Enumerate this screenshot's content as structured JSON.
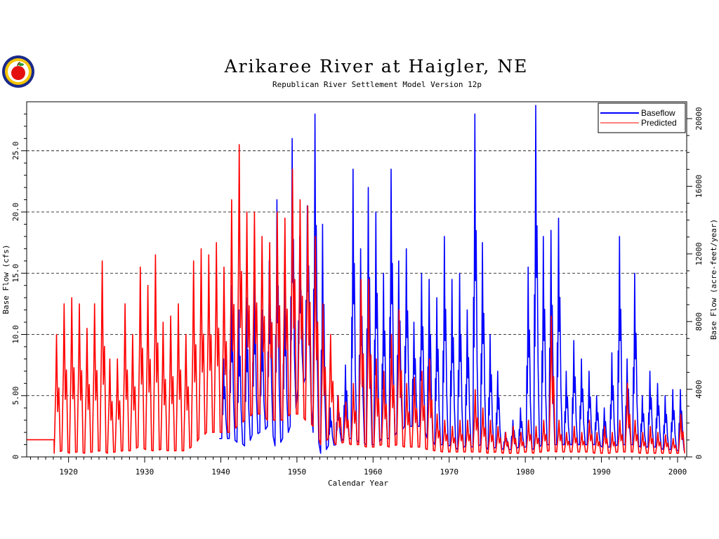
{
  "chart_data": {
    "type": "line",
    "title": "Arikaree River at Haigler, NE",
    "subtitle": "Republican River Settlement Model Version 12p",
    "xlabel": "Calendar Year",
    "ylabel": "Base Flow (cfs)",
    "y2label": "Base Flow (acre-feet/year)",
    "xlim": [
      1914.5,
      2001.2
    ],
    "ylim": [
      0,
      29
    ],
    "x_ticks": [
      1920,
      1930,
      1940,
      1950,
      1960,
      1970,
      1980,
      1990,
      2000
    ],
    "x_tick_labels": [
      "1920",
      "1930",
      "1940",
      "1950",
      "1960",
      "1970",
      "1980",
      "1990",
      "2000"
    ],
    "y_ticks": [
      0,
      5,
      10,
      15,
      20,
      25
    ],
    "y_tick_labels": [
      "0",
      "5.00",
      "10.0",
      "15.0",
      "20.0",
      "25.0"
    ],
    "y2_ticks": [
      0,
      4000,
      8000,
      12000,
      16000,
      20000
    ],
    "y2_tick_labels": [
      "0",
      "4000",
      "8000",
      "12000",
      "16000",
      "20000"
    ],
    "y2_per_y": 724,
    "grid": "horizontal-dashed",
    "legend_position": "top-right",
    "series": [
      {
        "name": "Baseflow",
        "color": "#0000ff",
        "start": 1939.8,
        "annual_peaks": [
          [
            1940,
            8.0
          ],
          [
            1941,
            14.0
          ],
          [
            1942,
            12.0
          ],
          [
            1943,
            13.0
          ],
          [
            1944,
            15.0
          ],
          [
            1945,
            12.0
          ],
          [
            1946,
            16.0
          ],
          [
            1947,
            21.0
          ],
          [
            1948,
            15.0
          ],
          [
            1949,
            26.0
          ],
          [
            1950,
            18.0
          ],
          [
            1951,
            20.5
          ],
          [
            1952,
            28.0
          ],
          [
            1953,
            19.0
          ],
          [
            1954,
            4.0
          ],
          [
            1955,
            5.0
          ],
          [
            1956,
            7.5
          ],
          [
            1957,
            23.5
          ],
          [
            1958,
            17.0
          ],
          [
            1959,
            22.0
          ],
          [
            1960,
            20.0
          ],
          [
            1961,
            15.0
          ],
          [
            1962,
            23.5
          ],
          [
            1963,
            16.0
          ],
          [
            1964,
            17.0
          ],
          [
            1965,
            11.0
          ],
          [
            1966,
            15.0
          ],
          [
            1967,
            14.5
          ],
          [
            1968,
            13.0
          ],
          [
            1969,
            18.0
          ],
          [
            1970,
            14.5
          ],
          [
            1971,
            15.0
          ],
          [
            1972,
            12.0
          ],
          [
            1973,
            28.0
          ],
          [
            1974,
            17.5
          ],
          [
            1975,
            10.0
          ],
          [
            1976,
            7.0
          ],
          [
            1977,
            2.0
          ],
          [
            1978,
            3.0
          ],
          [
            1979,
            4.0
          ],
          [
            1980,
            15.5
          ],
          [
            1981,
            28.7
          ],
          [
            1982,
            18.0
          ],
          [
            1983,
            18.5
          ],
          [
            1984,
            19.5
          ],
          [
            1985,
            7.0
          ],
          [
            1986,
            9.5
          ],
          [
            1987,
            8.0
          ],
          [
            1988,
            7.0
          ],
          [
            1989,
            5.0
          ],
          [
            1990,
            4.0
          ],
          [
            1991,
            8.5
          ],
          [
            1992,
            18.0
          ],
          [
            1993,
            8.0
          ],
          [
            1994,
            15.0
          ],
          [
            1995,
            5.0
          ],
          [
            1996,
            7.0
          ],
          [
            1997,
            6.0
          ],
          [
            1998,
            5.0
          ],
          [
            1999,
            5.5
          ],
          [
            2000,
            5.5
          ]
        ],
        "annual_lows": [
          [
            1940,
            1.5
          ],
          [
            1941,
            1.5
          ],
          [
            1942,
            1.2
          ],
          [
            1943,
            0.9
          ],
          [
            1944,
            1.8
          ],
          [
            1945,
            2.0
          ],
          [
            1946,
            2.5
          ],
          [
            1947,
            0.9
          ],
          [
            1948,
            1.5
          ],
          [
            1949,
            2.5
          ],
          [
            1950,
            5.5
          ],
          [
            1951,
            6.5
          ],
          [
            1952,
            2.0
          ],
          [
            1953,
            0.3
          ],
          [
            1954,
            0.9
          ],
          [
            1955,
            1.0
          ],
          [
            1956,
            1.5
          ],
          [
            1957,
            1.5
          ],
          [
            1958,
            1.2
          ],
          [
            1959,
            1.0
          ],
          [
            1960,
            1.0
          ],
          [
            1961,
            1.5
          ],
          [
            1962,
            1.5
          ],
          [
            1963,
            2.0
          ],
          [
            1964,
            2.5
          ],
          [
            1965,
            2.5
          ],
          [
            1966,
            2.5
          ],
          [
            1967,
            1.5
          ],
          [
            1968,
            1.0
          ],
          [
            1969,
            1.0
          ],
          [
            1970,
            0.9
          ],
          [
            1971,
            0.6
          ],
          [
            1972,
            0.9
          ],
          [
            1973,
            0.8
          ],
          [
            1974,
            1.0
          ],
          [
            1975,
            0.6
          ],
          [
            1976,
            0.8
          ],
          [
            1977,
            0.6
          ],
          [
            1978,
            0.6
          ],
          [
            1979,
            0.8
          ],
          [
            1980,
            0.8
          ],
          [
            1981,
            0.6
          ],
          [
            1982,
            1.0
          ],
          [
            1983,
            1.0
          ],
          [
            1984,
            1.0
          ],
          [
            1985,
            1.0
          ],
          [
            1986,
            1.0
          ],
          [
            1987,
            1.0
          ],
          [
            1988,
            1.0
          ],
          [
            1989,
            1.0
          ],
          [
            1990,
            0.8
          ],
          [
            1991,
            0.8
          ],
          [
            1992,
            1.0
          ],
          [
            1993,
            1.0
          ],
          [
            1994,
            1.0
          ],
          [
            1995,
            0.8
          ],
          [
            1996,
            0.8
          ],
          [
            1997,
            0.8
          ],
          [
            1998,
            0.6
          ],
          [
            1999,
            0.6
          ],
          [
            2000,
            0.5
          ]
        ]
      },
      {
        "name": "Predicted",
        "color": "#ff0000",
        "start": 1914.5,
        "flat_until": 1918.1,
        "flat_value": 1.4,
        "annual_peaks": [
          [
            1918,
            10.0
          ],
          [
            1919,
            12.5
          ],
          [
            1920,
            13.0
          ],
          [
            1921,
            12.5
          ],
          [
            1922,
            10.5
          ],
          [
            1923,
            12.5
          ],
          [
            1924,
            16.0
          ],
          [
            1925,
            8.0
          ],
          [
            1926,
            8.0
          ],
          [
            1927,
            12.5
          ],
          [
            1928,
            10.0
          ],
          [
            1929,
            15.5
          ],
          [
            1930,
            14.0
          ],
          [
            1931,
            16.5
          ],
          [
            1932,
            11.0
          ],
          [
            1933,
            11.5
          ],
          [
            1934,
            12.5
          ],
          [
            1935,
            10.0
          ],
          [
            1936,
            16.0
          ],
          [
            1937,
            17.0
          ],
          [
            1938,
            16.5
          ],
          [
            1939,
            17.5
          ],
          [
            1940,
            15.5
          ],
          [
            1941,
            21.0
          ],
          [
            1942,
            25.5
          ],
          [
            1943,
            20.0
          ],
          [
            1944,
            20.0
          ],
          [
            1945,
            18.0
          ],
          [
            1946,
            17.5
          ],
          [
            1947,
            20.0
          ],
          [
            1948,
            19.5
          ],
          [
            1949,
            23.5
          ],
          [
            1950,
            21.0
          ],
          [
            1951,
            20.5
          ],
          [
            1952,
            18.0
          ],
          [
            1953,
            12.5
          ],
          [
            1954,
            10.0
          ],
          [
            1955,
            5.0
          ],
          [
            1956,
            4.5
          ],
          [
            1957,
            6.0
          ],
          [
            1958,
            14.5
          ],
          [
            1959,
            14.5
          ],
          [
            1960,
            8.0
          ],
          [
            1961,
            7.0
          ],
          [
            1962,
            10.0
          ],
          [
            1963,
            12.0
          ],
          [
            1964,
            6.0
          ],
          [
            1965,
            6.5
          ],
          [
            1966,
            7.0
          ],
          [
            1967,
            8.0
          ],
          [
            1968,
            3.5
          ],
          [
            1969,
            3.0
          ],
          [
            1970,
            2.5
          ],
          [
            1971,
            3.0
          ],
          [
            1972,
            3.0
          ],
          [
            1973,
            5.5
          ],
          [
            1974,
            4.0
          ],
          [
            1975,
            3.0
          ],
          [
            1976,
            2.5
          ],
          [
            1977,
            2.0
          ],
          [
            1978,
            2.5
          ],
          [
            1979,
            2.0
          ],
          [
            1980,
            3.0
          ],
          [
            1981,
            2.5
          ],
          [
            1982,
            3.0
          ],
          [
            1983,
            11.5
          ],
          [
            1984,
            3.0
          ],
          [
            1985,
            2.0
          ],
          [
            1986,
            2.5
          ],
          [
            1987,
            2.0
          ],
          [
            1988,
            3.0
          ],
          [
            1989,
            2.0
          ],
          [
            1990,
            2.5
          ],
          [
            1991,
            2.0
          ],
          [
            1992,
            3.0
          ],
          [
            1993,
            6.0
          ],
          [
            1994,
            3.0
          ],
          [
            1995,
            2.0
          ],
          [
            1996,
            2.5
          ],
          [
            1997,
            2.0
          ],
          [
            1998,
            1.8
          ],
          [
            1999,
            1.5
          ],
          [
            2000,
            3.5
          ]
        ],
        "annual_lows": [
          [
            1918,
            0.3
          ],
          [
            1919,
            0.5
          ],
          [
            1920,
            0.3
          ],
          [
            1921,
            0.4
          ],
          [
            1922,
            0.3
          ],
          [
            1923,
            0.4
          ],
          [
            1924,
            0.5
          ],
          [
            1925,
            0.3
          ],
          [
            1926,
            0.4
          ],
          [
            1927,
            0.5
          ],
          [
            1928,
            0.5
          ],
          [
            1929,
            0.8
          ],
          [
            1930,
            0.6
          ],
          [
            1931,
            0.5
          ],
          [
            1932,
            0.6
          ],
          [
            1933,
            0.5
          ],
          [
            1934,
            0.5
          ],
          [
            1935,
            0.5
          ],
          [
            1936,
            0.8
          ],
          [
            1937,
            1.5
          ],
          [
            1938,
            2.0
          ],
          [
            1939,
            2.0
          ],
          [
            1940,
            2.0
          ],
          [
            1941,
            2.0
          ],
          [
            1942,
            2.5
          ],
          [
            1943,
            3.0
          ],
          [
            1944,
            3.5
          ],
          [
            1945,
            3.5
          ],
          [
            1946,
            3.0
          ],
          [
            1947,
            3.0
          ],
          [
            1948,
            3.0
          ],
          [
            1949,
            3.5
          ],
          [
            1950,
            3.5
          ],
          [
            1951,
            3.0
          ],
          [
            1952,
            2.5
          ],
          [
            1953,
            1.0
          ],
          [
            1954,
            1.5
          ],
          [
            1955,
            1.0
          ],
          [
            1956,
            1.2
          ],
          [
            1957,
            1.0
          ],
          [
            1958,
            1.0
          ],
          [
            1959,
            0.8
          ],
          [
            1960,
            0.8
          ],
          [
            1961,
            1.0
          ],
          [
            1962,
            0.8
          ],
          [
            1963,
            1.0
          ],
          [
            1964,
            0.8
          ],
          [
            1965,
            0.8
          ],
          [
            1966,
            0.8
          ],
          [
            1967,
            0.6
          ],
          [
            1968,
            0.5
          ],
          [
            1969,
            0.4
          ],
          [
            1970,
            0.4
          ],
          [
            1971,
            0.4
          ],
          [
            1972,
            0.4
          ],
          [
            1973,
            0.4
          ],
          [
            1974,
            0.4
          ],
          [
            1975,
            0.3
          ],
          [
            1976,
            0.4
          ],
          [
            1977,
            0.3
          ],
          [
            1978,
            0.3
          ],
          [
            1979,
            0.3
          ],
          [
            1980,
            0.4
          ],
          [
            1981,
            0.3
          ],
          [
            1982,
            0.4
          ],
          [
            1983,
            0.5
          ],
          [
            1984,
            0.4
          ],
          [
            1985,
            0.4
          ],
          [
            1986,
            0.4
          ],
          [
            1987,
            0.4
          ],
          [
            1988,
            0.4
          ],
          [
            1989,
            0.3
          ],
          [
            1990,
            0.3
          ],
          [
            1991,
            0.3
          ],
          [
            1992,
            0.4
          ],
          [
            1993,
            0.4
          ],
          [
            1994,
            0.4
          ],
          [
            1995,
            0.3
          ],
          [
            1996,
            0.3
          ],
          [
            1997,
            0.3
          ],
          [
            1998,
            0.3
          ],
          [
            1999,
            0.3
          ],
          [
            2000,
            0.3
          ]
        ]
      }
    ]
  },
  "logo": {
    "icon": "apple-seal-icon",
    "ring_color": "#1a2a8a",
    "ring_fill": "#f5c400",
    "apple_color": "#e41010",
    "leaf_color": "#2f9a2f"
  }
}
